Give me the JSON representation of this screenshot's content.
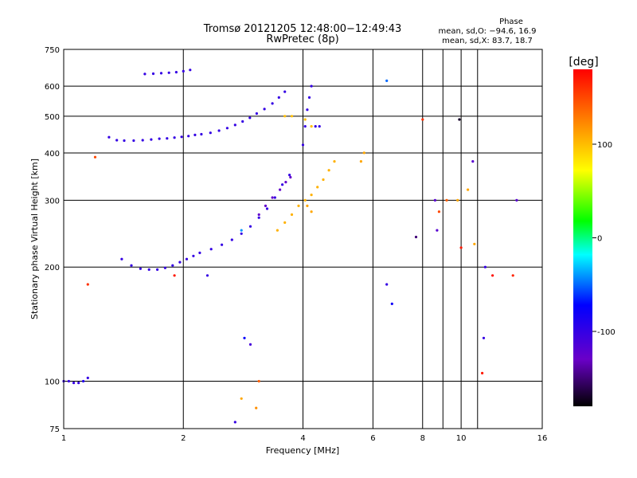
{
  "chart_data": {
    "type": "scatter",
    "title": "Tromsø 20121205 12:48:00−12:49:43",
    "subtitle": "RwPretec (8p)",
    "xlabel": "Frequency [MHz]",
    "ylabel": "Stationary phase Virtual Height [km]",
    "x_scale": "log",
    "y_scale": "log",
    "xlim": [
      1,
      16
    ],
    "ylim": [
      75,
      750
    ],
    "x_ticks": [
      1,
      2,
      4,
      6,
      8,
      10,
      16
    ],
    "x_minor_ticks": [
      9,
      11
    ],
    "y_ticks": [
      75,
      100,
      200,
      300,
      400,
      500,
      600,
      750
    ],
    "grid": true,
    "phase_stats": {
      "heading": "Phase",
      "line_o": "mean, sd,O: −94.6, 16.9",
      "line_x": "mean, sd,X:  83.7, 18.7"
    },
    "colorbar": {
      "label": "[deg]",
      "range": [
        -180,
        180
      ],
      "ticks": [
        100,
        0,
        -100
      ]
    },
    "color_scale": "rainbow",
    "series": [
      {
        "points": [
          [
            1.0,
            100,
            -100
          ],
          [
            1.03,
            100,
            -100
          ],
          [
            1.06,
            99,
            -100
          ],
          [
            1.09,
            99,
            -100
          ],
          [
            1.12,
            100,
            -90
          ],
          [
            1.15,
            102,
            -100
          ],
          [
            1.3,
            440,
            -100
          ],
          [
            1.36,
            432,
            -100
          ],
          [
            1.42,
            431,
            -100
          ],
          [
            1.5,
            431,
            -100
          ],
          [
            1.58,
            432,
            -100
          ],
          [
            1.66,
            434,
            -100
          ],
          [
            1.74,
            436,
            -100
          ],
          [
            1.82,
            437,
            -100
          ],
          [
            1.9,
            439,
            -100
          ],
          [
            1.98,
            441,
            -100
          ],
          [
            2.06,
            443,
            -100
          ],
          [
            2.14,
            446,
            -100
          ],
          [
            2.22,
            448,
            -100
          ],
          [
            2.34,
            452,
            -100
          ],
          [
            2.46,
            458,
            -100
          ],
          [
            2.58,
            465,
            -100
          ],
          [
            2.7,
            474,
            -100
          ],
          [
            2.82,
            484,
            -100
          ],
          [
            2.94,
            495,
            -100
          ],
          [
            3.06,
            508,
            -100
          ],
          [
            3.2,
            522,
            -100
          ],
          [
            3.35,
            540,
            -100
          ],
          [
            3.48,
            560,
            -100
          ],
          [
            3.6,
            580,
            -100
          ],
          [
            1.6,
            646,
            -100
          ],
          [
            1.68,
            647,
            -100
          ],
          [
            1.76,
            649,
            -100
          ],
          [
            1.84,
            651,
            -100
          ],
          [
            1.92,
            653,
            -100
          ],
          [
            2.0,
            657,
            -100
          ],
          [
            2.08,
            662,
            -100
          ],
          [
            1.4,
            210,
            -100
          ],
          [
            1.48,
            202,
            -100
          ],
          [
            1.56,
            198,
            -100
          ],
          [
            1.64,
            197,
            -100
          ],
          [
            1.72,
            197,
            -100
          ],
          [
            1.8,
            199,
            -100
          ],
          [
            1.88,
            202,
            -100
          ],
          [
            1.96,
            206,
            -100
          ],
          [
            2.04,
            210,
            -100
          ],
          [
            2.12,
            214,
            -100
          ],
          [
            2.2,
            218,
            -100
          ],
          [
            2.35,
            223,
            -100
          ],
          [
            2.5,
            229,
            -100
          ],
          [
            2.65,
            236,
            -100
          ],
          [
            2.8,
            245,
            -100
          ],
          [
            2.95,
            256,
            -100
          ],
          [
            3.1,
            270,
            -100
          ],
          [
            3.25,
            285,
            -100
          ],
          [
            3.4,
            305,
            -100
          ],
          [
            3.55,
            330,
            -100
          ],
          [
            3.7,
            350,
            -100
          ],
          [
            3.1,
            275,
            -125
          ],
          [
            3.22,
            290,
            -125
          ],
          [
            3.35,
            305,
            -125
          ],
          [
            3.5,
            320,
            -125
          ],
          [
            3.62,
            335,
            -125
          ],
          [
            3.72,
            345,
            -125
          ],
          [
            3.45,
            250,
            105
          ],
          [
            3.6,
            262,
            105
          ],
          [
            3.75,
            275,
            105
          ],
          [
            3.9,
            290,
            105
          ],
          [
            4.05,
            300,
            105
          ],
          [
            4.2,
            310,
            105
          ],
          [
            4.35,
            325,
            105
          ],
          [
            4.5,
            340,
            105
          ],
          [
            4.65,
            360,
            105
          ],
          [
            4.8,
            380,
            105
          ],
          [
            3.6,
            500,
            100
          ],
          [
            3.75,
            500,
            100
          ],
          [
            4.05,
            490,
            100
          ],
          [
            4.2,
            470,
            100
          ],
          [
            4.0,
            420,
            -100
          ],
          [
            4.05,
            470,
            -100
          ],
          [
            4.1,
            520,
            -100
          ],
          [
            4.15,
            560,
            -100
          ],
          [
            4.2,
            600,
            -100
          ],
          [
            4.3,
            470,
            -100
          ],
          [
            4.4,
            470,
            -100
          ],
          [
            5.7,
            400,
            110
          ],
          [
            5.6,
            380,
            110
          ],
          [
            6.5,
            620,
            -50
          ],
          [
            6.5,
            180,
            -100
          ],
          [
            6.7,
            160,
            -80
          ],
          [
            4.1,
            290,
            110
          ],
          [
            4.2,
            280,
            110
          ],
          [
            2.3,
            190,
            -100
          ],
          [
            2.85,
            130,
            -75
          ],
          [
            2.95,
            125,
            -110
          ],
          [
            3.1,
            100,
            140
          ],
          [
            3.05,
            85,
            120
          ],
          [
            2.8,
            90,
            110
          ],
          [
            2.7,
            78,
            -100
          ],
          [
            8.0,
            490,
            160
          ],
          [
            8.6,
            300,
            -120
          ],
          [
            8.8,
            280,
            150
          ],
          [
            9.2,
            300,
            140
          ],
          [
            9.8,
            300,
            110
          ],
          [
            9.9,
            490,
            -170
          ],
          [
            10.0,
            225,
            170
          ],
          [
            10.4,
            320,
            110
          ],
          [
            10.7,
            380,
            -120
          ],
          [
            10.8,
            230,
            110
          ],
          [
            11.5,
            200,
            -100
          ],
          [
            11.4,
            130,
            -100
          ],
          [
            11.3,
            105,
            170
          ],
          [
            12.0,
            190,
            175
          ],
          [
            13.8,
            300,
            -120
          ],
          [
            13.5,
            190,
            165
          ],
          [
            8.7,
            250,
            -120
          ],
          [
            7.7,
            240,
            -150
          ],
          [
            1.15,
            180,
            160
          ],
          [
            1.2,
            390,
            150
          ],
          [
            1.9,
            190,
            170
          ],
          [
            2.8,
            250,
            -40
          ]
        ]
      }
    ]
  }
}
